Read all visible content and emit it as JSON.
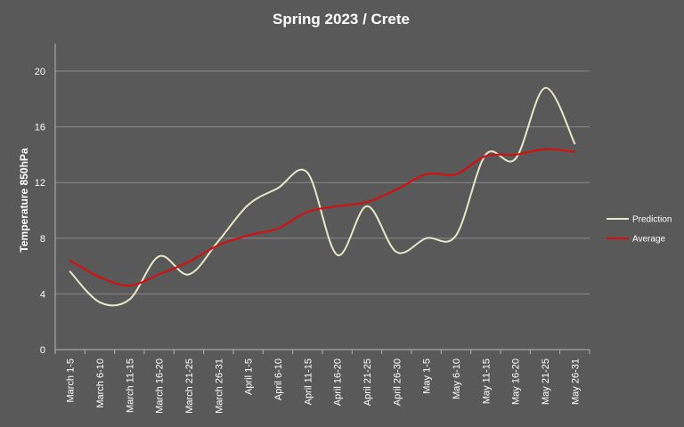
{
  "chart_data": {
    "type": "line",
    "title": "Spring 2023 / Crete",
    "xlabel": "",
    "ylabel": "Temperature 850hPa",
    "ylim": [
      0,
      20
    ],
    "yticks": [
      0,
      4,
      8,
      12,
      16,
      20
    ],
    "grid": true,
    "legend_position": "right",
    "categories": [
      "March 1-5",
      "March 6-10",
      "March 11-15",
      "March 16-20",
      "March 21-25",
      "March 26-31",
      "April 1-5",
      "April 6-10",
      "April 11-15",
      "April 16-20",
      "April 21-25",
      "April 26-30",
      "May 1-5",
      "May 6-10",
      "May 11-15",
      "May 16-20",
      "May 21-25",
      "May 26-31"
    ],
    "series": [
      {
        "name": "Prediction",
        "color": "#e8e8c8",
        "values": [
          5.6,
          3.4,
          3.6,
          6.7,
          5.4,
          7.8,
          10.4,
          11.6,
          12.7,
          6.8,
          10.3,
          7.0,
          8.0,
          8.2,
          14.0,
          13.7,
          18.8,
          14.8
        ]
      },
      {
        "name": "Average",
        "color": "#dd0a0a",
        "values": [
          6.4,
          5.2,
          4.6,
          5.4,
          6.3,
          7.5,
          8.2,
          8.7,
          9.9,
          10.3,
          10.6,
          11.5,
          12.6,
          12.6,
          13.9,
          14.0,
          14.4,
          14.2
        ]
      }
    ]
  }
}
